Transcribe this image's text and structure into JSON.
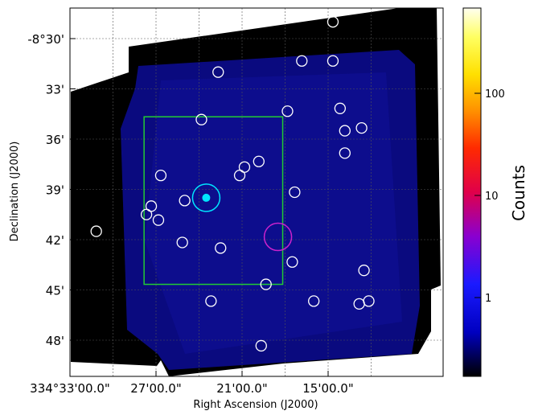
{
  "chart_data": {
    "type": "image",
    "xlabel": "Right Ascension (J2000)",
    "ylabel": "Declination (J2000)",
    "colorbar_label": "Counts",
    "x_ticks": [
      "334°33'00.0\"",
      "27'00.0\"",
      "21'00.0\"",
      "15'00.0\""
    ],
    "y_ticks": [
      "-8°30'",
      "33'",
      "36'",
      "39'",
      "42'",
      "45'",
      "48'"
    ],
    "colorbar_ticks": [
      "100",
      "10",
      "1"
    ],
    "colors": {
      "background": "#000000",
      "field": "#0a0a8c",
      "source_marker": "#ffffff",
      "target_marker": "#00e5ff",
      "region_box": "#22cc33",
      "background_region": "#cc22cc"
    },
    "sources": [
      {
        "ra": "334°14'40\"",
        "dec": "-8°29'00\""
      },
      {
        "ra": "334°16'50\"",
        "dec": "-8°31'20\""
      },
      {
        "ra": "334°14'40\"",
        "dec": "-8°31'20\""
      },
      {
        "ra": "334°22'40\"",
        "dec": "-8°32'00\""
      },
      {
        "ra": "334°17'50\"",
        "dec": "-8°34'20\""
      },
      {
        "ra": "334°14'10\"",
        "dec": "-8°34'10\""
      },
      {
        "ra": "334°23'50\"",
        "dec": "-8°34'50\""
      },
      {
        "ra": "334°13'50\"",
        "dec": "-8°35'30\""
      },
      {
        "ra": "334°12'40\"",
        "dec": "-8°35'20\""
      },
      {
        "ra": "334°13'50\"",
        "dec": "-8°36'50\""
      },
      {
        "ra": "334°20'50\"",
        "dec": "-8°37'40\""
      },
      {
        "ra": "334°19'50\"",
        "dec": "-8°37'20\""
      },
      {
        "ra": "334°21'10\"",
        "dec": "-8°38'10\""
      },
      {
        "ra": "334°26'40\"",
        "dec": "-8°38'10\""
      },
      {
        "ra": "334°17'20\"",
        "dec": "-8°39'10\""
      },
      {
        "ra": "334°25'00\"",
        "dec": "-8°39'40\""
      },
      {
        "ra": "334°27'20\"",
        "dec": "-8°40'00\""
      },
      {
        "ra": "334°27'40\"",
        "dec": "-8°40'30\""
      },
      {
        "ra": "334°26'50\"",
        "dec": "-8°40'50\""
      },
      {
        "ra": "334°31'10\"",
        "dec": "-8°41'30\""
      },
      {
        "ra": "334°25'10\"",
        "dec": "-8°42'10\""
      },
      {
        "ra": "334°22'30\"",
        "dec": "-8°42'30\""
      },
      {
        "ra": "334°17'30\"",
        "dec": "-8°43'20\""
      },
      {
        "ra": "334°12'30\"",
        "dec": "-8°43'50\""
      },
      {
        "ra": "334°19'20\"",
        "dec": "-8°44'40\""
      },
      {
        "ra": "334°23'10\"",
        "dec": "-8°45'40\""
      },
      {
        "ra": "334°16'00\"",
        "dec": "-8°45'40\""
      },
      {
        "ra": "334°12'50\"",
        "dec": "-8°45'50\""
      },
      {
        "ra": "334°12'10\"",
        "dec": "-8°45'40\""
      },
      {
        "ra": "334°19'40\"",
        "dec": "-8°48'20\""
      }
    ],
    "target": {
      "ra": "334°23'30\"",
      "dec": "-8°39'30\""
    },
    "background_region": {
      "ra": "334°18'30\"",
      "dec": "-8°41'50\""
    },
    "region_box": {
      "ra_range": [
        "334°27'50\"",
        "334°18'10\""
      ],
      "dec_range": [
        "-8°34'40\"",
        "-8°44'40\""
      ]
    }
  }
}
